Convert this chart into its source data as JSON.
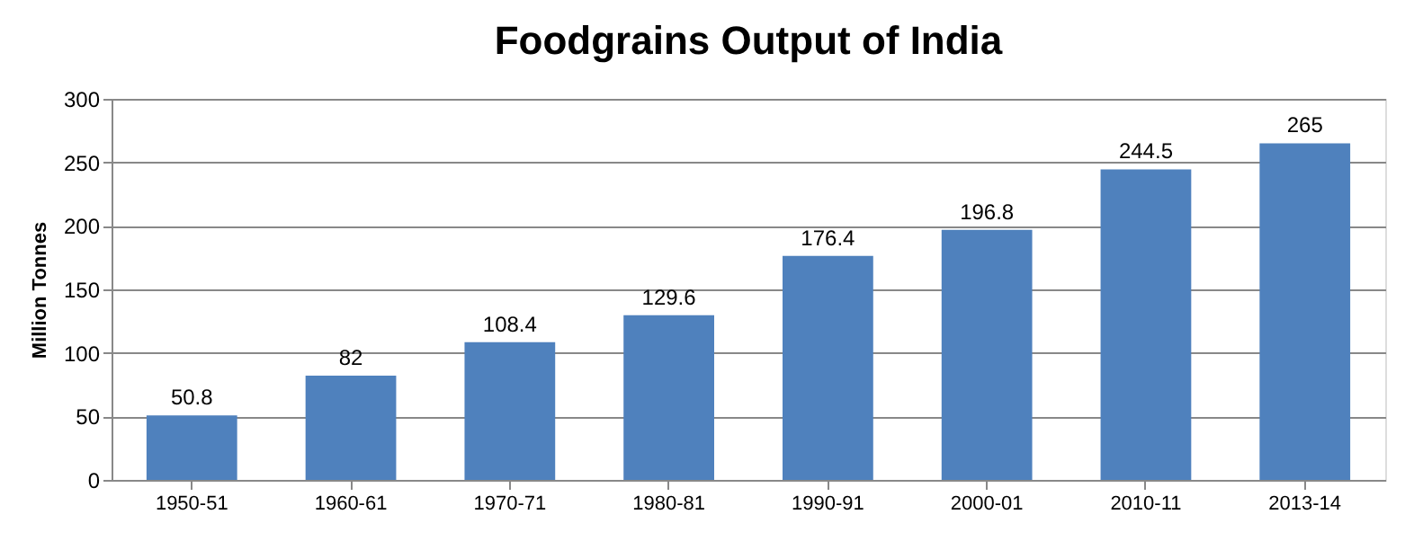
{
  "chart_data": {
    "type": "bar",
    "title": "Foodgrains Output of India",
    "ylabel": "Million Tonnes",
    "categories": [
      "1950-51",
      "1960-61",
      "1970-71",
      "1980-81",
      "1990-91",
      "2000-01",
      "2010-11",
      "2013-14"
    ],
    "values": [
      50.8,
      82,
      108.4,
      129.6,
      176.4,
      196.8,
      244.5,
      265
    ],
    "color": "#4f81bd",
    "ylim": [
      0,
      300
    ],
    "yticks": [
      0,
      50,
      100,
      150,
      200,
      250,
      300
    ],
    "grid": "y",
    "data_labels": true
  }
}
